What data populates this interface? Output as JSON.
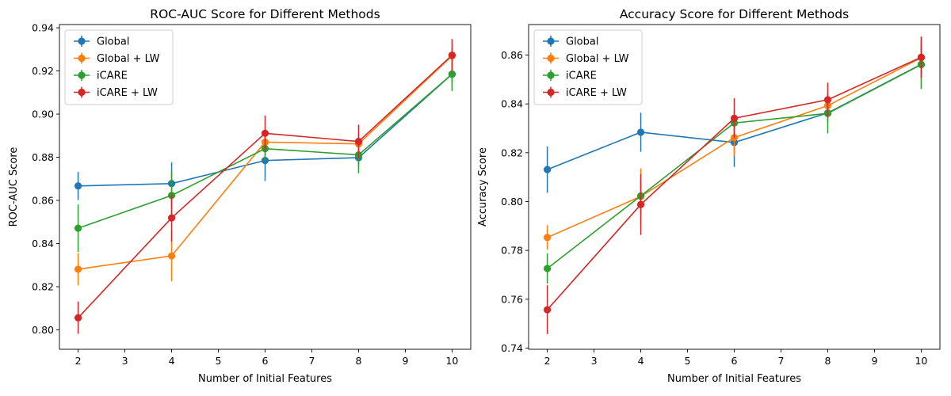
{
  "chart_data": [
    {
      "type": "line",
      "title": "ROC-AUC Score for Different Methods",
      "xlabel": "Number of Initial Features",
      "ylabel": "ROC-AUC Score",
      "xlim": [
        1.6,
        10.4
      ],
      "ylim": [
        0.791,
        0.9415
      ],
      "xticks": [
        2,
        3,
        4,
        5,
        6,
        7,
        8,
        9,
        10
      ],
      "yticks": [
        0.8,
        0.82,
        0.84,
        0.86,
        0.88,
        0.9,
        0.92,
        0.94
      ],
      "ytick_labels": [
        "0.80",
        "0.82",
        "0.84",
        "0.86",
        "0.88",
        "0.90",
        "0.92",
        "0.94"
      ],
      "legend_position": "upper-left",
      "x": [
        2,
        4,
        6,
        8,
        10
      ],
      "series": [
        {
          "name": "Global",
          "color": "#1f77b4",
          "values": [
            0.8667,
            0.8678,
            0.8785,
            0.8798,
            0.9185
          ],
          "errors": [
            0.0065,
            0.0098,
            0.0095,
            0.004,
            0.004
          ]
        },
        {
          "name": "Global + LW",
          "color": "#ff7f0e",
          "values": [
            0.8281,
            0.8343,
            0.887,
            0.8862,
            0.927
          ],
          "errors": [
            0.0075,
            0.0118,
            0.006,
            0.005,
            0.004
          ]
        },
        {
          "name": "iCARE",
          "color": "#2ca02c",
          "values": [
            0.8471,
            0.8623,
            0.884,
            0.8811,
            0.9185
          ],
          "errors": [
            0.011,
            0.011,
            0.0055,
            0.0085,
            0.0078
          ]
        },
        {
          "name": "iCARE + LW",
          "color": "#d62728",
          "values": [
            0.8056,
            0.8519,
            0.8911,
            0.8873,
            0.9273
          ],
          "errors": [
            0.0075,
            0.011,
            0.0082,
            0.0078,
            0.0075
          ]
        }
      ]
    },
    {
      "type": "line",
      "title": "Accuracy Score for Different Methods",
      "xlabel": "Number of Initial Features",
      "ylabel": "Accuracy Score",
      "xlim": [
        1.6,
        10.4
      ],
      "ylim": [
        0.7395,
        0.8725
      ],
      "xticks": [
        2,
        3,
        4,
        5,
        6,
        7,
        8,
        9,
        10
      ],
      "yticks": [
        0.74,
        0.76,
        0.78,
        0.8,
        0.82,
        0.84,
        0.86
      ],
      "ytick_labels": [
        "0.74",
        "0.76",
        "0.78",
        "0.80",
        "0.82",
        "0.84",
        "0.86"
      ],
      "legend_position": "upper-left",
      "x": [
        2,
        4,
        6,
        8,
        10
      ],
      "series": [
        {
          "name": "Global",
          "color": "#1f77b4",
          "values": [
            0.8131,
            0.8284,
            0.8242,
            0.8363,
            0.8562
          ],
          "errors": [
            0.0095,
            0.008,
            0.01,
            0.004,
            0.003
          ]
        },
        {
          "name": "Global + LW",
          "color": "#ff7f0e",
          "values": [
            0.7853,
            0.8021,
            0.8262,
            0.8393,
            0.8589
          ],
          "errors": [
            0.005,
            0.0115,
            0.0075,
            0.004,
            0.004
          ]
        },
        {
          "name": "iCARE",
          "color": "#2ca02c",
          "values": [
            0.7726,
            0.8023,
            0.8322,
            0.8361,
            0.8561
          ],
          "errors": [
            0.0062,
            0.007,
            0.0055,
            0.0082,
            0.01
          ]
        },
        {
          "name": "iCARE + LW",
          "color": "#d62728",
          "values": [
            0.7557,
            0.7988,
            0.8341,
            0.8417,
            0.8591
          ],
          "errors": [
            0.01,
            0.0125,
            0.0082,
            0.007,
            0.0085
          ]
        }
      ]
    }
  ]
}
